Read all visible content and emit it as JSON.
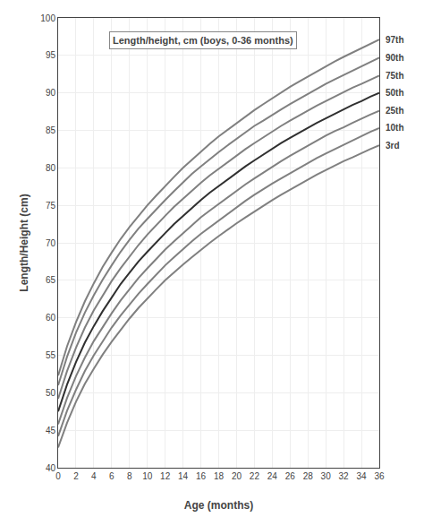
{
  "chart_data": {
    "type": "line",
    "title": "Length/height, cm (boys, 0-36 months)",
    "xlabel": "Age (months)",
    "ylabel": "Length/Height (cm)",
    "x": [
      0,
      1,
      2,
      3,
      4,
      5,
      6,
      7,
      8,
      9,
      10,
      11,
      12,
      13,
      14,
      15,
      16,
      17,
      18,
      19,
      20,
      21,
      22,
      23,
      24,
      25,
      26,
      27,
      28,
      29,
      30,
      31,
      32,
      33,
      34,
      35,
      36
    ],
    "series": [
      {
        "name": "97th",
        "color": "#808080",
        "values": [
          52.3,
          56.2,
          59.4,
          62.2,
          64.6,
          66.8,
          68.7,
          70.5,
          72.1,
          73.6,
          75.0,
          76.3,
          77.6,
          78.8,
          80.0,
          81.1,
          82.2,
          83.2,
          84.2,
          85.1,
          86.0,
          86.9,
          87.7,
          88.5,
          89.3,
          90.1,
          90.8,
          91.5,
          92.2,
          92.9,
          93.5,
          94.2,
          94.8,
          95.4,
          96.0,
          96.5,
          97.1
        ]
      },
      {
        "name": "90th",
        "color": "#808080",
        "values": [
          51.0,
          54.8,
          58.0,
          60.7,
          63.0,
          65.1,
          67.0,
          68.8,
          70.4,
          71.9,
          73.2,
          74.5,
          75.7,
          76.9,
          78.1,
          79.2,
          80.2,
          81.2,
          82.1,
          83.0,
          83.9,
          84.7,
          85.6,
          86.3,
          87.1,
          87.8,
          88.5,
          89.2,
          89.9,
          90.6,
          91.2,
          91.8,
          92.4,
          93.0,
          93.6,
          94.1,
          94.7
        ]
      },
      {
        "name": "75th",
        "color": "#808080",
        "values": [
          49.2,
          52.9,
          56.0,
          58.7,
          61.0,
          63.0,
          64.9,
          66.6,
          68.2,
          69.7,
          71.1,
          72.4,
          73.6,
          74.8,
          75.9,
          77.0,
          78.0,
          79.0,
          79.9,
          80.8,
          81.7,
          82.5,
          83.3,
          84.1,
          84.9,
          85.6,
          86.3,
          87.0,
          87.7,
          88.3,
          88.9,
          89.5,
          90.1,
          90.7,
          91.2,
          91.8,
          92.3
        ]
      },
      {
        "name": "50th",
        "color": "#303030",
        "values": [
          47.5,
          51.1,
          54.1,
          56.7,
          58.9,
          60.9,
          62.7,
          64.5,
          66.0,
          67.5,
          68.8,
          70.1,
          71.3,
          72.5,
          73.6,
          74.7,
          75.7,
          76.7,
          77.6,
          78.5,
          79.4,
          80.2,
          81.0,
          81.8,
          82.6,
          83.3,
          84.0,
          84.7,
          85.4,
          86.0,
          86.6,
          87.2,
          87.8,
          88.4,
          88.9,
          89.5,
          90.0
        ]
      },
      {
        "name": "25th",
        "color": "#808080",
        "values": [
          45.8,
          49.3,
          52.2,
          54.7,
          56.9,
          58.8,
          60.6,
          62.3,
          63.8,
          65.3,
          66.6,
          67.9,
          69.1,
          70.2,
          71.3,
          72.4,
          73.4,
          74.3,
          75.2,
          76.1,
          77.0,
          77.8,
          78.6,
          79.4,
          80.2,
          80.9,
          81.6,
          82.3,
          83.0,
          83.6,
          84.3,
          84.9,
          85.4,
          86.0,
          86.6,
          87.1,
          87.6
        ]
      },
      {
        "name": "10th",
        "color": "#808080",
        "values": [
          44.2,
          47.6,
          50.4,
          52.9,
          55.0,
          56.9,
          58.7,
          60.3,
          61.8,
          63.2,
          64.5,
          65.8,
          67.0,
          68.1,
          69.2,
          70.2,
          71.2,
          72.1,
          73.0,
          73.9,
          74.8,
          75.6,
          76.4,
          77.2,
          77.9,
          78.6,
          79.3,
          80.0,
          80.7,
          81.3,
          81.9,
          82.5,
          83.1,
          83.7,
          84.2,
          84.8,
          85.3
        ]
      },
      {
        "name": "3rd",
        "color": "#808080",
        "values": [
          42.7,
          46.0,
          48.8,
          51.2,
          53.2,
          55.1,
          56.8,
          58.4,
          59.9,
          61.3,
          62.6,
          63.8,
          65.0,
          66.1,
          67.1,
          68.1,
          69.1,
          70.0,
          70.9,
          71.8,
          72.6,
          73.4,
          74.2,
          75.0,
          75.7,
          76.4,
          77.1,
          77.8,
          78.5,
          79.1,
          79.7,
          80.3,
          80.9,
          81.4,
          82.0,
          82.5,
          83.0
        ]
      }
    ],
    "xlim": [
      0,
      36
    ],
    "ylim": [
      40,
      100
    ],
    "xticks": [
      0,
      2,
      4,
      6,
      8,
      10,
      12,
      14,
      16,
      18,
      20,
      22,
      24,
      26,
      28,
      30,
      32,
      34,
      36
    ],
    "yticks": [
      40,
      45,
      50,
      55,
      60,
      65,
      70,
      75,
      80,
      85,
      90,
      95,
      100
    ],
    "grid": true
  }
}
